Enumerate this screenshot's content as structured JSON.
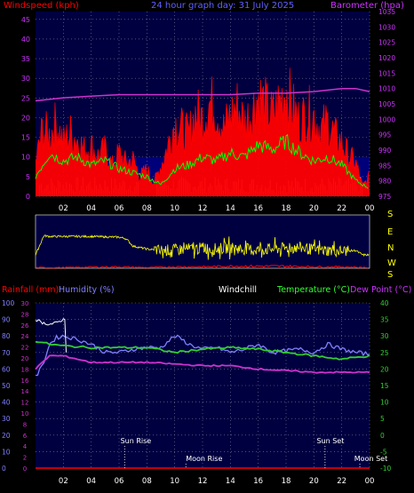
{
  "header": {
    "windspeed_label": "Windspeed (kph)",
    "title": "24 hour graph day: 31 July 2025",
    "barometer_label": "Barometer (hpa)"
  },
  "wind_dir_labels": [
    "S",
    "E",
    "N",
    "W",
    "S"
  ],
  "lower_header": {
    "rainfall_label": "Rainfall (mm)",
    "humidity_label": "Humidity (%)",
    "windchill_label": "Windchill",
    "temperature_label": "Temperature (°C)",
    "dewpoint_label": "Dew Point (°C)"
  },
  "annotations": {
    "sun_rise": "Sun Rise",
    "moon_rise": "Moon Rise",
    "sun_set": "Sun Set",
    "moon_set": "Moon Set"
  },
  "colors": {
    "plot_bg": "#000040",
    "grid": "#8080a0",
    "windspeed": "#ff0000",
    "windspeed_avg": "#00ff00",
    "wind_min": "#ffffff",
    "barometer": "#cc33cc",
    "wind_dir": "#ffff00",
    "humidity": "#8080ff",
    "temperature": "#33cc33",
    "dewpoint": "#cc33cc",
    "rain": "#ff0000"
  },
  "chart_data": [
    {
      "type": "line",
      "title": "24 hour graph day: 31 July 2025",
      "x_ticks": [
        "02",
        "04",
        "06",
        "08",
        "10",
        "12",
        "14",
        "16",
        "18",
        "20",
        "22",
        "00"
      ],
      "y_left": {
        "label": "Windspeed (kph)",
        "ticks": [
          0,
          5,
          10,
          15,
          20,
          25,
          30,
          35,
          40,
          45
        ],
        "range": [
          0,
          47
        ]
      },
      "y_right": {
        "label": "Barometer (hpa)",
        "ticks": [
          975,
          980,
          985,
          990,
          995,
          1000,
          1005,
          1010,
          1015,
          1020,
          1025,
          1030,
          1035
        ],
        "range": [
          975,
          1035
        ]
      },
      "grid": true,
      "series": [
        {
          "name": "Windspeed gust",
          "x": [
            0,
            0.5,
            1,
            1.5,
            2,
            2.5,
            3,
            3.5,
            4,
            4.5,
            5,
            5.5,
            6,
            6.5,
            7,
            7.5,
            8,
            8.5,
            9,
            9.5,
            10,
            10.5,
            11,
            11.5,
            12,
            12.5,
            13,
            13.5,
            14,
            14.5,
            15,
            15.5,
            16,
            16.5,
            17,
            17.5,
            18,
            18.5,
            19,
            19.5,
            20,
            20.5,
            21,
            21.5,
            22,
            22.5,
            23,
            23.5,
            24
          ],
          "values": [
            10,
            20,
            18,
            22,
            16,
            19,
            17,
            14,
            15,
            12,
            14,
            9,
            13,
            10,
            11,
            6,
            8,
            4,
            9,
            15,
            22,
            20,
            18,
            25,
            23,
            28,
            26,
            20,
            24,
            27,
            22,
            25,
            30,
            27,
            24,
            28,
            32,
            26,
            22,
            25,
            24,
            20,
            22,
            18,
            16,
            12,
            10,
            3,
            6
          ]
        },
        {
          "name": "Windspeed average",
          "x": [
            0,
            1,
            2,
            3,
            4,
            5,
            6,
            7,
            8,
            9,
            10,
            11,
            12,
            13,
            14,
            15,
            16,
            17,
            18,
            19,
            20,
            21,
            22,
            23,
            24
          ],
          "values": [
            5,
            11,
            9,
            10,
            8,
            9,
            7,
            6,
            5,
            3,
            7,
            8,
            10,
            9,
            11,
            10,
            13,
            12,
            14,
            11,
            9,
            10,
            8,
            4,
            2
          ]
        },
        {
          "name": "Barometer",
          "x": [
            0,
            2,
            4,
            6,
            8,
            10,
            12,
            14,
            16,
            18,
            20,
            22,
            23,
            24
          ],
          "values": [
            1006,
            1007,
            1007.5,
            1008,
            1008,
            1008,
            1008,
            1008,
            1008.5,
            1008.5,
            1009,
            1010,
            1010,
            1009
          ]
        }
      ]
    },
    {
      "type": "line",
      "x_ticks": [
        "02",
        "04",
        "06",
        "08",
        "10",
        "12",
        "14",
        "16",
        "18",
        "20",
        "22",
        "00"
      ],
      "y_right_labels": [
        "S",
        "E",
        "N",
        "W",
        "S"
      ],
      "grid": false,
      "series": [
        {
          "name": "Wind direction",
          "x": [
            0,
            0.6,
            1,
            2,
            3,
            4,
            5,
            6,
            6.5,
            7,
            8,
            9,
            10,
            11,
            12,
            13,
            14,
            15,
            16,
            17,
            18,
            19,
            20,
            21,
            22,
            23,
            23.5,
            24
          ],
          "values": [
            90,
            220,
            215,
            215,
            215,
            215,
            212,
            210,
            200,
            150,
            130,
            120,
            125,
            130,
            135,
            130,
            140,
            130,
            125,
            130,
            135,
            140,
            125,
            120,
            115,
            120,
            90,
            90
          ]
        },
        {
          "name": "Wind gust direction (red)",
          "x": [
            0,
            2,
            4,
            6,
            8,
            10,
            12,
            14,
            16,
            18,
            20,
            22,
            24
          ],
          "values": [
            5,
            5,
            8,
            10,
            5,
            10,
            10,
            15,
            15,
            15,
            10,
            10,
            5
          ]
        }
      ]
    },
    {
      "type": "line",
      "x_ticks": [
        "02",
        "04",
        "06",
        "08",
        "10",
        "12",
        "14",
        "16",
        "18",
        "20",
        "22",
        "00"
      ],
      "y_left_rain": {
        "label": "Rainfall (mm)",
        "ticks": [
          0,
          10,
          20,
          30,
          40,
          50,
          60,
          70,
          80,
          90,
          100
        ],
        "range": [
          0,
          100
        ]
      },
      "y_left_humidity": {
        "label": "Humidity (%)",
        "ticks": [
          0,
          2,
          4,
          6,
          8,
          10,
          12,
          14,
          16,
          18,
          20,
          22,
          24,
          26,
          28,
          30
        ],
        "range": [
          0,
          30
        ]
      },
      "y_right": {
        "label": "Temperature (°C)",
        "ticks": [
          -10,
          -5,
          0,
          5,
          10,
          15,
          20,
          25,
          30,
          35,
          40
        ],
        "range": [
          -10,
          40
        ]
      },
      "grid": true,
      "series": [
        {
          "name": "Humidity",
          "x": [
            0,
            0.5,
            1,
            1.5,
            2,
            3,
            4,
            5,
            6,
            7,
            8,
            9,
            10,
            10.5,
            11,
            12,
            13,
            14,
            15,
            16,
            17,
            18,
            19,
            20,
            21,
            22,
            23,
            24
          ],
          "values": [
            55,
            62,
            75,
            79,
            80,
            78,
            75,
            70,
            70,
            72,
            73,
            73,
            80,
            78,
            75,
            72,
            73,
            70,
            72,
            75,
            70,
            71,
            72,
            70,
            75,
            72,
            70,
            69
          ]
        },
        {
          "name": "Humidity (white peak)",
          "x": [
            0,
            0.5,
            1,
            1.5,
            2,
            2.2
          ],
          "values": [
            90,
            88,
            87,
            88,
            90,
            90
          ]
        },
        {
          "name": "Temperature",
          "x": [
            0,
            1,
            2,
            4,
            6,
            8,
            10,
            12,
            14,
            16,
            18,
            20,
            22,
            24
          ],
          "values": [
            28.5,
            27.5,
            27,
            26.5,
            26.5,
            26.5,
            25,
            26,
            26.5,
            26,
            25,
            24,
            23,
            24
          ]
        },
        {
          "name": "Dew Point",
          "x": [
            0,
            0.5,
            1,
            2,
            4,
            6,
            8,
            10,
            12,
            14,
            16,
            18,
            20,
            22,
            24
          ],
          "values": [
            20,
            22,
            24,
            24,
            22,
            22,
            22,
            21.5,
            21,
            21,
            20,
            19.5,
            19,
            19,
            19
          ]
        },
        {
          "name": "Rainfall",
          "x": [
            0,
            24
          ],
          "values": [
            0,
            0
          ]
        }
      ]
    }
  ]
}
